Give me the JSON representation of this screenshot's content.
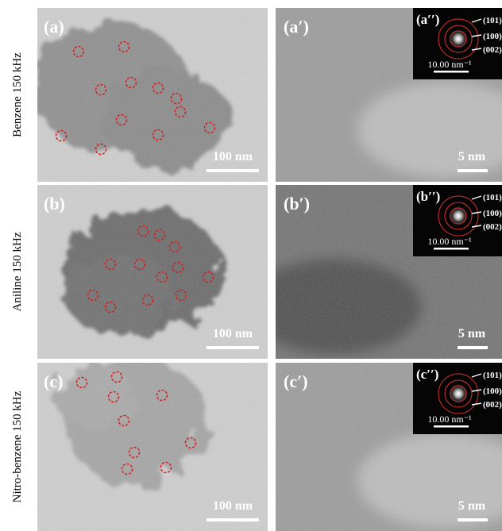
{
  "rows": [
    {
      "label": "Benzene 150 kHz",
      "left": {
        "tag": "(a)",
        "scale": "100 nm"
      },
      "right": {
        "tag": "(a′)",
        "scale": "5 nm"
      },
      "inset": {
        "tag": "(a′′)",
        "rings": [
          "(101)",
          "(100)",
          "(002)"
        ],
        "scale": "10.00 nm⁻¹"
      }
    },
    {
      "label": "Aniline 150 kHz",
      "left": {
        "tag": "(b)",
        "scale": "100 nm"
      },
      "right": {
        "tag": "(b′)",
        "scale": "5 nm"
      },
      "inset": {
        "tag": "(b′′)",
        "rings": [
          "(101)",
          "(100)",
          "(002)"
        ],
        "scale": "10.00 nm⁻¹"
      }
    },
    {
      "label": "Nitro-benzene 150 kHz",
      "left": {
        "tag": "(c)",
        "scale": "100 nm"
      },
      "right": {
        "tag": "(c′)",
        "scale": "5 nm"
      },
      "inset": {
        "tag": "(c′′)",
        "rings": [
          "(101)",
          "(100)",
          "(002)"
        ],
        "scale": "10.00 nm⁻¹"
      }
    }
  ]
}
